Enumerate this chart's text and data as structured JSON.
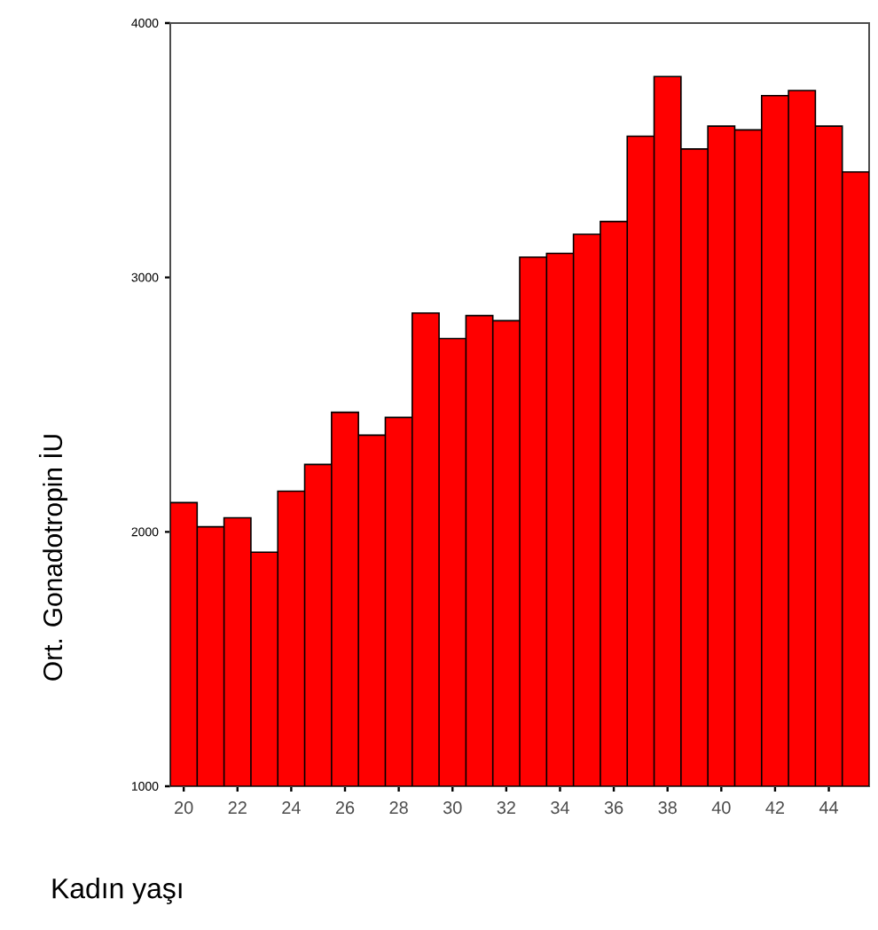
{
  "chart_data": {
    "type": "bar",
    "xlabel": "Kadın yaşı",
    "ylabel": "Ort. Gonadotropin İU",
    "categories": [
      "20",
      null,
      "22",
      null,
      "24",
      null,
      "26",
      null,
      "28",
      null,
      "30",
      null,
      "32",
      null,
      "34",
      null,
      "36",
      null,
      "38",
      null,
      "40",
      null,
      "42",
      null,
      "44",
      null
    ],
    "values": [
      2115,
      2020,
      2055,
      1920,
      2160,
      2265,
      2470,
      2380,
      2450,
      2860,
      2760,
      2850,
      2830,
      3080,
      3095,
      3170,
      3220,
      3555,
      3790,
      3505,
      3595,
      3580,
      3715,
      3735,
      3595,
      3415
    ],
    "color": "#ff0000",
    "ylim": [
      1000,
      4000
    ],
    "yticks": [
      1000,
      2000,
      3000,
      4000
    ],
    "grid": false
  }
}
